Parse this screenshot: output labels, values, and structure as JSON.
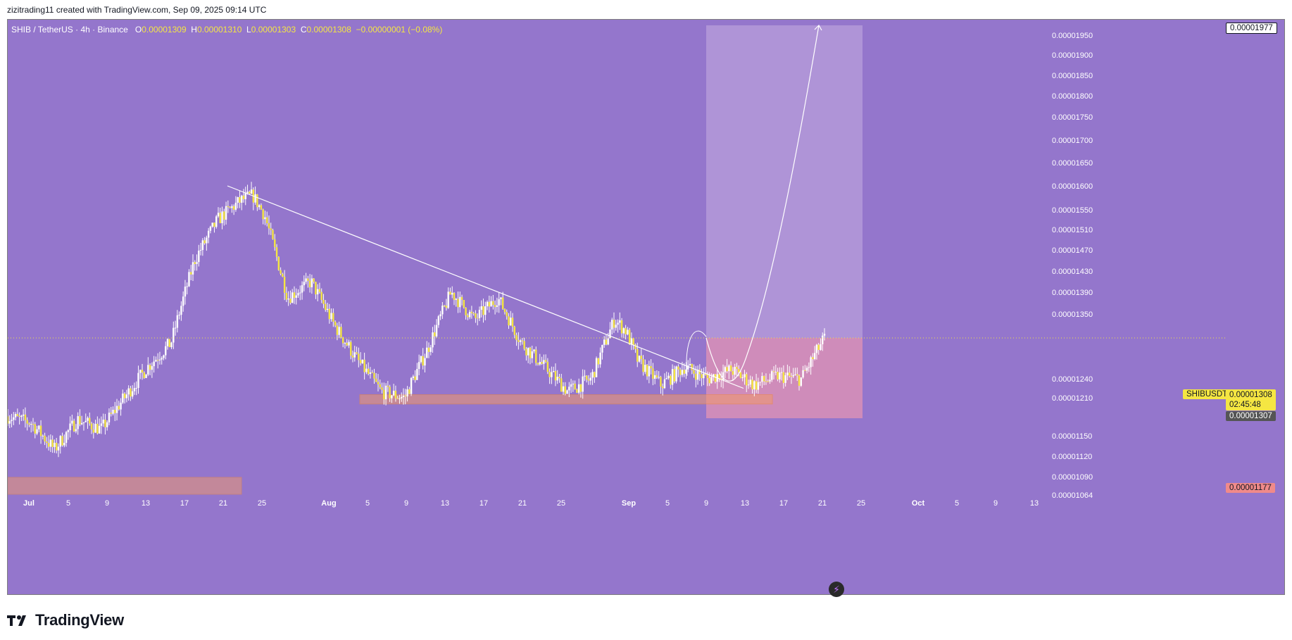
{
  "header": {
    "text": "zizitrading11 created with TradingView.com, Sep 09, 2025 09:14 UTC"
  },
  "legend": {
    "symbol": "SHIB / TetherUS · 4h · Binance",
    "o_label": "O",
    "o": "0.00001309",
    "h_label": "H",
    "h": "0.00001310",
    "l_label": "L",
    "l": "0.00001303",
    "c_label": "C",
    "c": "0.00001308",
    "change": "−0.00000001 (−0.08%)"
  },
  "price_tags": {
    "top": "0.00001977",
    "symbol": "SHIBUSDT",
    "last": "0.00001308",
    "countdown": "02:45:48",
    "current": "0.00001307",
    "stop": "0.00001177"
  },
  "footer": {
    "brand": "TradingView"
  },
  "colors": {
    "background": "#9476cc",
    "candle": "#f5e642",
    "wick": "#ffffff",
    "target_zone": "#b49ad8",
    "stop_zone": "#d58fb8",
    "support_zone": "#f29a6a"
  },
  "chart_data": {
    "type": "candlestick",
    "symbol": "SHIBUSDT",
    "timeframe": "4h",
    "y_axis_ticks": [
      "0.00001950",
      "0.00001900",
      "0.00001850",
      "0.00001800",
      "0.00001750",
      "0.00001700",
      "0.00001650",
      "0.00001600",
      "0.00001550",
      "0.00001510",
      "0.00001470",
      "0.00001430",
      "0.00001390",
      "0.00001350",
      "0.00001240",
      "0.00001210",
      "0.00001150",
      "0.00001120",
      "0.00001090",
      "0.00001064"
    ],
    "y_range": [
      1.064e-05,
      1.977e-05
    ],
    "x_axis_ticks": [
      "Jul",
      "5",
      "9",
      "13",
      "17",
      "21",
      "25",
      "Aug",
      "5",
      "9",
      "13",
      "17",
      "21",
      "25",
      "Sep",
      "5",
      "9",
      "13",
      "17",
      "21",
      "25",
      "Oct",
      "5",
      "9",
      "13"
    ],
    "price_path": [
      [
        0,
        1.18e-05
      ],
      [
        2,
        1.17e-05
      ],
      [
        4,
        1.13e-05
      ],
      [
        6,
        1.175e-05
      ],
      [
        8,
        1.16e-05
      ],
      [
        10,
        1.21e-05
      ],
      [
        12,
        1.26e-05
      ],
      [
        14,
        1.3e-05
      ],
      [
        16,
        1.45e-05
      ],
      [
        18,
        1.53e-05
      ],
      [
        20,
        1.57e-05
      ],
      [
        21,
        1.58e-05
      ],
      [
        22,
        1.54e-05
      ],
      [
        24,
        1.38e-05
      ],
      [
        26,
        1.41e-05
      ],
      [
        28,
        1.33e-05
      ],
      [
        30,
        1.27e-05
      ],
      [
        32,
        1.22e-05
      ],
      [
        34,
        1.21e-05
      ],
      [
        36,
        1.29e-05
      ],
      [
        38,
        1.39e-05
      ],
      [
        40,
        1.34e-05
      ],
      [
        42,
        1.38e-05
      ],
      [
        44,
        1.3e-05
      ],
      [
        46,
        1.26e-05
      ],
      [
        48,
        1.22e-05
      ],
      [
        50,
        1.24e-05
      ],
      [
        52,
        1.34e-05
      ],
      [
        53,
        1.32e-05
      ],
      [
        54,
        1.27e-05
      ],
      [
        56,
        1.23e-05
      ],
      [
        58,
        1.26e-05
      ],
      [
        60,
        1.24e-05
      ],
      [
        62,
        1.255e-05
      ],
      [
        64,
        1.23e-05
      ],
      [
        66,
        1.245e-05
      ],
      [
        68,
        1.24e-05
      ],
      [
        70,
        1.308e-05
      ]
    ],
    "annotations": {
      "trendline": {
        "from": [
          "Jul 21",
          1.6e-05
        ],
        "to": [
          "Sep 12",
          1.225e-05
        ]
      },
      "support_zone": [
        1.2e-05,
        1.215e-05
      ],
      "long_position": {
        "entry": 1.308e-05,
        "target": 1.977e-05,
        "stop": 1.177e-05
      },
      "projection": "dip to 0.00001230 then rally to 0.00001977"
    }
  }
}
